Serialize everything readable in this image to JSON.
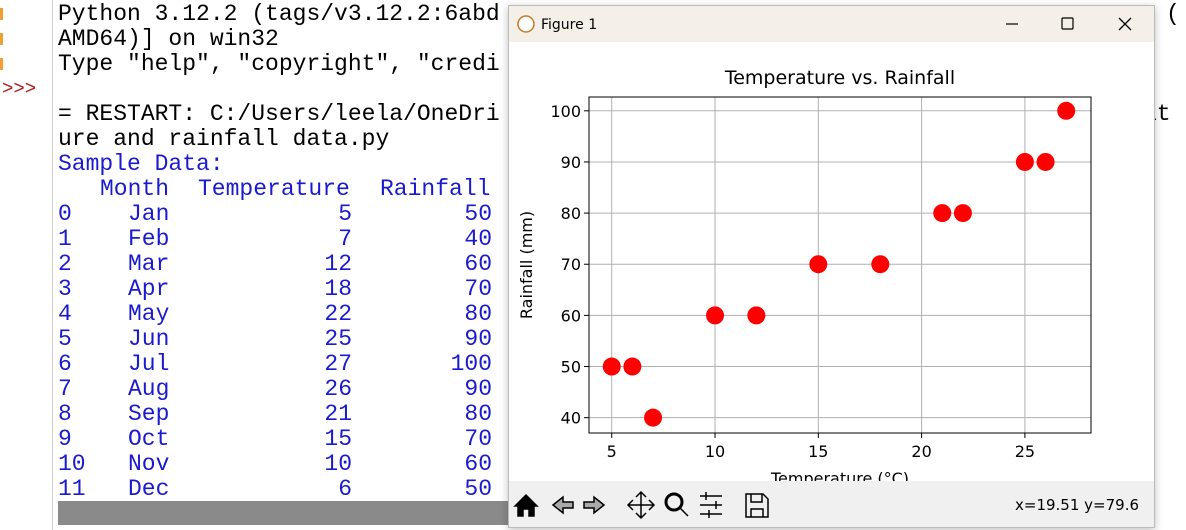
{
  "shell": {
    "lines": [
      "Python 3.12.2 (tags/v3.12.2:6abd",
      "AMD64)] on win32",
      "Type \"help\", \"copyright\", \"credi"
    ],
    "right_fragments": [
      "(",
      "at"
    ],
    "prompt": ">>>",
    "restart": [
      "= RESTART: C:/Users/leela/OneDri",
      "ure and rainfall data.py"
    ],
    "heading": "Sample Data:",
    "table": {
      "columns": [
        "Month",
        "Temperature",
        "Rainfall"
      ],
      "rows": [
        [
          "0",
          "Jan",
          "5",
          "50"
        ],
        [
          "1",
          "Feb",
          "7",
          "40"
        ],
        [
          "2",
          "Mar",
          "12",
          "60"
        ],
        [
          "3",
          "Apr",
          "18",
          "70"
        ],
        [
          "4",
          "May",
          "22",
          "80"
        ],
        [
          "5",
          "Jun",
          "25",
          "90"
        ],
        [
          "6",
          "Jul",
          "27",
          "100"
        ],
        [
          "7",
          "Aug",
          "26",
          "90"
        ],
        [
          "8",
          "Sep",
          "21",
          "80"
        ],
        [
          "9",
          "Oct",
          "15",
          "70"
        ],
        [
          "10",
          "Nov",
          "10",
          "60"
        ],
        [
          "11",
          "Dec",
          "6",
          "50"
        ]
      ]
    }
  },
  "figure": {
    "window_title": "Figure 1",
    "status": "x=19.51 y=79.6"
  },
  "chart_data": {
    "type": "scatter",
    "title": "Temperature vs. Rainfall",
    "x_label": "Temperature (°C)",
    "y_label": "Rainfall (mm)",
    "x": [
      5,
      7,
      12,
      18,
      22,
      25,
      27,
      26,
      21,
      15,
      10,
      6
    ],
    "y": [
      50,
      40,
      60,
      70,
      80,
      90,
      100,
      90,
      80,
      70,
      60,
      50
    ],
    "color": "red",
    "xlim": [
      3.9,
      28.2
    ],
    "ylim": [
      37,
      102.7
    ],
    "xticks": [
      5,
      10,
      15,
      20,
      25
    ],
    "yticks": [
      40,
      50,
      60,
      70,
      80,
      90,
      100
    ],
    "grid": true
  }
}
